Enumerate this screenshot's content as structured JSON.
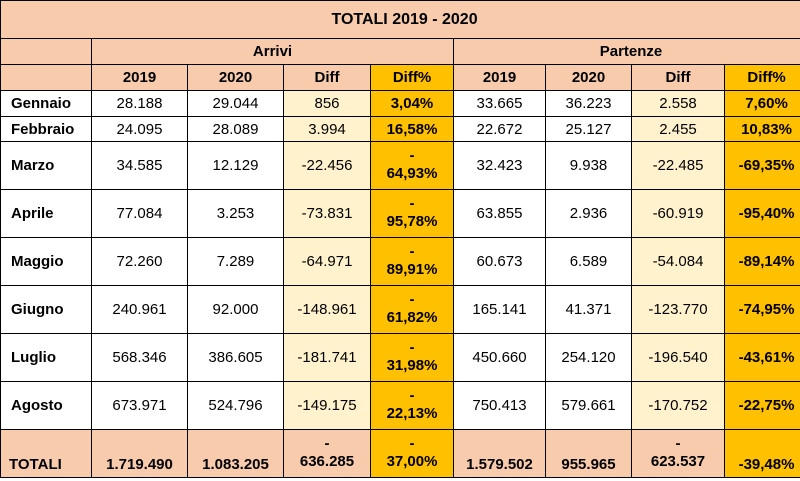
{
  "title": "TOTALI 2019 - 2020",
  "groups": {
    "arrivi": "Arrivi",
    "partenze": "Partenze"
  },
  "headers": [
    "2019",
    "2020",
    "Diff",
    "Diff%",
    "2019",
    "2020",
    "Diff",
    "Diff%"
  ],
  "rows": [
    {
      "month": "Gennaio",
      "a2019": "28.188",
      "a2020": "29.044",
      "adiff": "856",
      "apct": "3,04%",
      "p2019": "33.665",
      "p2020": "36.223",
      "pdiff": "2.558",
      "ppct": "7,60%"
    },
    {
      "month": "Febbraio",
      "a2019": "24.095",
      "a2020": "28.089",
      "adiff": "3.994",
      "apct": "16,58%",
      "p2019": "22.672",
      "p2020": "25.127",
      "pdiff": "2.455",
      "ppct": "10,83%"
    },
    {
      "month": "Marzo",
      "a2019": "34.585",
      "a2020": "12.129",
      "adiff": "-22.456",
      "apct_sign": "-",
      "apct": "64,93%",
      "p2019": "32.423",
      "p2020": "9.938",
      "pdiff": "-22.485",
      "ppct": "-69,35%"
    },
    {
      "month": "Aprile",
      "a2019": "77.084",
      "a2020": "3.253",
      "adiff": "-73.831",
      "apct_sign": "-",
      "apct": "95,78%",
      "p2019": "63.855",
      "p2020": "2.936",
      "pdiff": "-60.919",
      "ppct": "-95,40%"
    },
    {
      "month": "Maggio",
      "a2019": "72.260",
      "a2020": "7.289",
      "adiff": "-64.971",
      "apct_sign": "-",
      "apct": "89,91%",
      "p2019": "60.673",
      "p2020": "6.589",
      "pdiff": "-54.084",
      "ppct": "-89,14%"
    },
    {
      "month": "Giugno",
      "a2019": "240.961",
      "a2020": "92.000",
      "adiff": "-148.961",
      "apct_sign": "-",
      "apct": "61,82%",
      "p2019": "165.141",
      "p2020": "41.371",
      "pdiff": "-123.770",
      "ppct": "-74,95%"
    },
    {
      "month": "Luglio",
      "a2019": "568.346",
      "a2020": "386.605",
      "adiff": "-181.741",
      "apct_sign": "-",
      "apct": "31,98%",
      "p2019": "450.660",
      "p2020": "254.120",
      "pdiff": "-196.540",
      "ppct": "-43,61%"
    },
    {
      "month": "Agosto",
      "a2019": "673.971",
      "a2020": "524.796",
      "adiff": "-149.175",
      "apct_sign": "-",
      "apct": "22,13%",
      "p2019": "750.413",
      "p2020": "579.661",
      "pdiff": "-170.752",
      "ppct": "-22,75%"
    }
  ],
  "totals": {
    "label": "TOTALI",
    "a2019": "1.719.490",
    "a2020": "1.083.205",
    "adiff_sign": "-",
    "adiff": "636.285",
    "apct_sign": "-",
    "apct": "37,00%",
    "p2019": "1.579.502",
    "p2020": "955.965",
    "pdiff_sign": "-",
    "pdiff": "623.537",
    "ppct": "-39,48%"
  },
  "colors": {
    "header": "#f8cbad",
    "diff_fill": "#fff2cc",
    "pct_fill": "#ffc000",
    "border": "#000000"
  }
}
